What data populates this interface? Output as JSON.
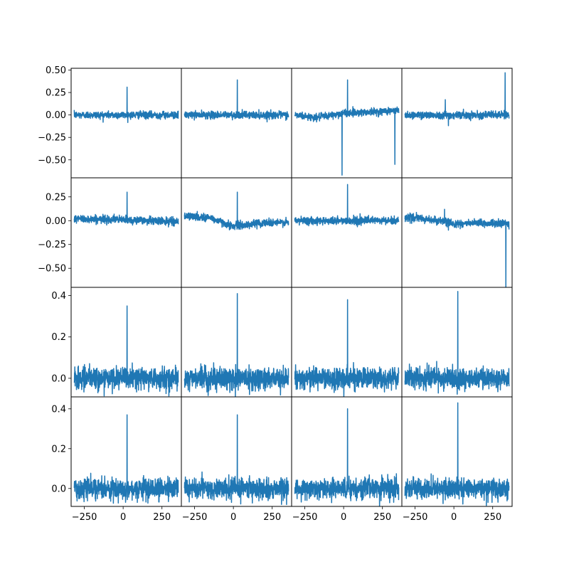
{
  "chart_data": {
    "type": "line",
    "layout": {
      "rows": 4,
      "cols": 4,
      "sharex": true,
      "sharey": "row"
    },
    "xlim": [
      -335,
      375
    ],
    "xticks": [
      -250,
      0,
      250
    ],
    "xtick_labels": [
      "−250",
      "0",
      "250"
    ],
    "rows": [
      {
        "ylim": [
          -0.7,
          0.52
        ],
        "yticks": [
          -0.5,
          -0.25,
          0.0,
          0.25,
          0.5
        ],
        "ytick_labels": [
          "−0.50",
          "−0.25",
          "0.00",
          "0.25",
          "0.50"
        ],
        "noise": 0.02
      },
      {
        "ylim": [
          -0.7,
          0.45
        ],
        "yticks": [
          -0.5,
          -0.25,
          0.0,
          0.25
        ],
        "ytick_labels": [
          "−0.50",
          "−0.25",
          "0.00",
          "0.25"
        ],
        "noise": 0.02
      },
      {
        "ylim": [
          -0.09,
          0.44
        ],
        "yticks": [
          0.0,
          0.2,
          0.4
        ],
        "ytick_labels": [
          "0.0",
          "0.2",
          "0.4"
        ],
        "noise": 0.025
      },
      {
        "ylim": [
          -0.09,
          0.46
        ],
        "yticks": [
          0.0,
          0.2,
          0.4
        ],
        "ytick_labels": [
          "0.0",
          "0.2",
          "0.4"
        ],
        "noise": 0.025
      }
    ],
    "panels": [
      {
        "row": 0,
        "col": 0,
        "x_range": [
          -315,
          355
        ],
        "spikes": [
          {
            "x": 25,
            "y": 0.31
          }
        ],
        "baseline_trend": []
      },
      {
        "row": 0,
        "col": 1,
        "x_range": [
          -315,
          355
        ],
        "spikes": [
          {
            "x": 25,
            "y": 0.39
          }
        ],
        "baseline_trend": []
      },
      {
        "row": 0,
        "col": 2,
        "x_range": [
          -315,
          355
        ],
        "spikes": [
          {
            "x": 25,
            "y": 0.39
          },
          {
            "x": -10,
            "y": -0.67
          },
          {
            "x": 330,
            "y": -0.55
          }
        ],
        "baseline_trend": [
          [
            -315,
            0.0
          ],
          [
            -180,
            -0.03
          ],
          [
            0,
            0.02
          ],
          [
            355,
            0.05
          ]
        ]
      },
      {
        "row": 0,
        "col": 3,
        "x_range": [
          -315,
          355
        ],
        "spikes": [
          {
            "x": 330,
            "y": 0.47
          },
          {
            "x": -55,
            "y": 0.17
          },
          {
            "x": -35,
            "y": -0.12
          }
        ],
        "baseline_trend": []
      },
      {
        "row": 1,
        "col": 0,
        "x_range": [
          -315,
          355
        ],
        "spikes": [
          {
            "x": 25,
            "y": 0.3
          }
        ],
        "baseline_trend": [
          [
            -315,
            0.02
          ],
          [
            0,
            0.01
          ],
          [
            355,
            -0.01
          ]
        ]
      },
      {
        "row": 1,
        "col": 1,
        "x_range": [
          -315,
          355
        ],
        "spikes": [
          {
            "x": 25,
            "y": 0.3
          }
        ],
        "baseline_trend": [
          [
            -315,
            0.05
          ],
          [
            -150,
            0.03
          ],
          [
            0,
            -0.06
          ],
          [
            200,
            -0.02
          ],
          [
            355,
            -0.02
          ]
        ]
      },
      {
        "row": 1,
        "col": 2,
        "x_range": [
          -315,
          355
        ],
        "spikes": [
          {
            "x": 25,
            "y": 0.38
          }
        ],
        "baseline_trend": []
      },
      {
        "row": 1,
        "col": 3,
        "x_range": [
          -315,
          355
        ],
        "spikes": [
          {
            "x": 335,
            "y": -0.7
          },
          {
            "x": -60,
            "y": 0.12
          },
          {
            "x": -35,
            "y": -0.1
          }
        ],
        "baseline_trend": [
          [
            -315,
            0.04
          ],
          [
            -100,
            0.0
          ],
          [
            0,
            -0.03
          ],
          [
            355,
            -0.03
          ]
        ]
      },
      {
        "row": 2,
        "col": 0,
        "x_range": [
          -315,
          355
        ],
        "spikes": [
          {
            "x": 25,
            "y": 0.35
          }
        ],
        "baseline_trend": []
      },
      {
        "row": 2,
        "col": 1,
        "x_range": [
          -315,
          355
        ],
        "spikes": [
          {
            "x": 25,
            "y": 0.41
          }
        ],
        "baseline_trend": []
      },
      {
        "row": 2,
        "col": 2,
        "x_range": [
          -315,
          355
        ],
        "spikes": [
          {
            "x": 25,
            "y": 0.38
          }
        ],
        "baseline_trend": []
      },
      {
        "row": 2,
        "col": 3,
        "x_range": [
          -315,
          355
        ],
        "spikes": [
          {
            "x": 25,
            "y": 0.42
          }
        ],
        "baseline_trend": []
      },
      {
        "row": 3,
        "col": 0,
        "x_range": [
          -315,
          355
        ],
        "spikes": [
          {
            "x": 25,
            "y": 0.37
          }
        ],
        "baseline_trend": []
      },
      {
        "row": 3,
        "col": 1,
        "x_range": [
          -315,
          355
        ],
        "spikes": [
          {
            "x": 25,
            "y": 0.37
          }
        ],
        "baseline_trend": []
      },
      {
        "row": 3,
        "col": 2,
        "x_range": [
          -315,
          355
        ],
        "spikes": [
          {
            "x": 25,
            "y": 0.4
          }
        ],
        "baseline_trend": []
      },
      {
        "row": 3,
        "col": 3,
        "x_range": [
          -315,
          355
        ],
        "spikes": [
          {
            "x": 25,
            "y": 0.43
          }
        ],
        "baseline_trend": []
      }
    ],
    "line_color": "#1f77b4",
    "grid": false
  }
}
